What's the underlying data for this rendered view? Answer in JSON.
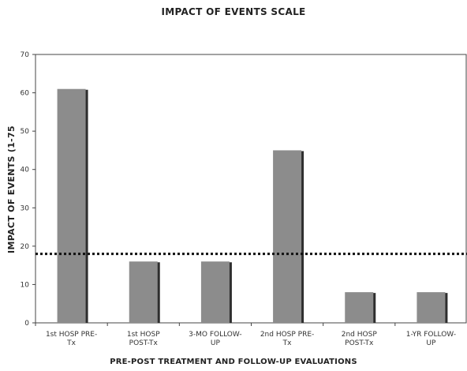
{
  "chart_data": {
    "type": "bar",
    "title": "IMPACT OF EVENTS SCALE",
    "xlabel": "PRE-POST TREATMENT AND FOLLOW-UP EVALUATIONS",
    "ylabel": "IMPACT OF EVENTS (1-75",
    "categories": [
      [
        "1st HOSP PRE-",
        "Tx"
      ],
      [
        "1st HOSP",
        "POST-Tx"
      ],
      [
        "3-MO FOLLOW-",
        "UP"
      ],
      [
        "2nd HOSP PRE-",
        "Tx"
      ],
      [
        "2nd HOSP",
        "POST-Tx"
      ],
      [
        "1-YR FOLLOW-",
        "UP"
      ]
    ],
    "values": [
      61,
      16,
      16,
      45,
      8,
      8
    ],
    "ylim": [
      0,
      70
    ],
    "yticks": [
      0,
      10,
      20,
      30,
      40,
      50,
      60,
      70
    ],
    "reference_line": 18,
    "grid": false,
    "colors": {
      "bar": "#8c8c8c",
      "bar_shadow": "#2e2e2e",
      "axis": "#444444",
      "reference_line": "#111111"
    }
  }
}
